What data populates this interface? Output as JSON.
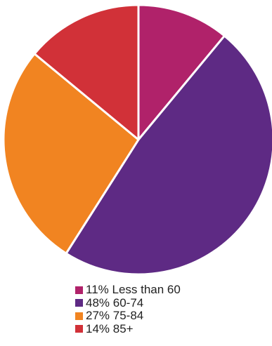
{
  "chart_data": {
    "type": "pie",
    "slices": [
      {
        "label": "11% Less than 60",
        "value": 11,
        "color": "#B0226A"
      },
      {
        "label": "48% 60-74",
        "value": 48,
        "color": "#5E2A84"
      },
      {
        "label": "27% 75-84",
        "value": 27,
        "color": "#F18421"
      },
      {
        "label": "14% 85+",
        "value": 14,
        "color": "#D13138"
      }
    ],
    "legend_position": "bottom",
    "slice_border_color": "#ffffff"
  }
}
